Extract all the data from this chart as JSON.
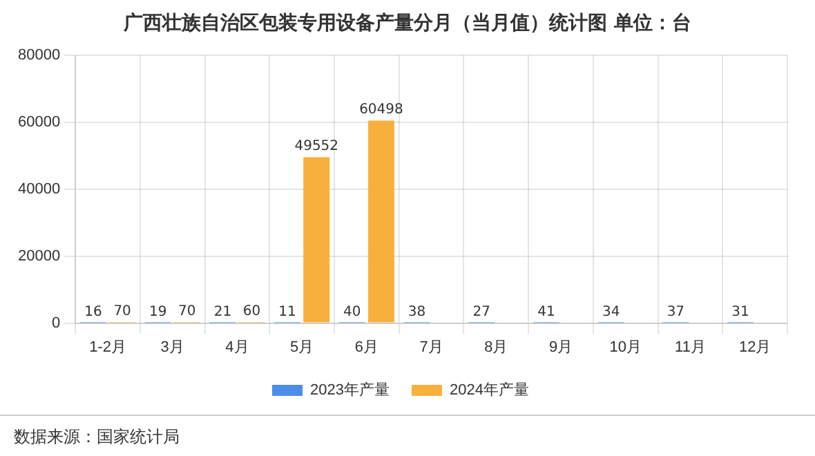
{
  "chart_data": {
    "type": "bar",
    "title": "广西壮族自治区包装专用设备产量分月（当月值）统计图 单位：台",
    "categories": [
      "1-2月",
      "3月",
      "4月",
      "5月",
      "6月",
      "7月",
      "8月",
      "9月",
      "10月",
      "11月",
      "12月"
    ],
    "series": [
      {
        "name": "2023年产量",
        "color": "#4a8ee8",
        "values": [
          16,
          19,
          21,
          11,
          40,
          38,
          27,
          41,
          34,
          37,
          31
        ]
      },
      {
        "name": "2024年产量",
        "color": "#f8b03c",
        "values": [
          70,
          70,
          60,
          49552,
          60498,
          null,
          null,
          null,
          null,
          null,
          null
        ]
      }
    ],
    "ylim": [
      0,
      80000
    ],
    "yticks": [
      0,
      20000,
      40000,
      60000,
      80000
    ],
    "grid": true,
    "legend": "bottom",
    "data_labels": true,
    "annotations": [
      "数据来源：国家统计局"
    ]
  }
}
